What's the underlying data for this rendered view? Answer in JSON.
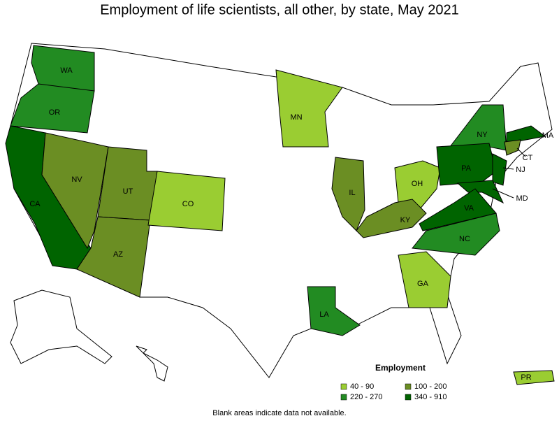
{
  "title": "Employment of life scientists, all other, by state, May 2021",
  "legend": {
    "title": "Employment",
    "items": [
      {
        "label": "40 - 90",
        "color": "#9acd32"
      },
      {
        "label": "100 - 200",
        "color": "#6b8e23"
      },
      {
        "label": "220 - 270",
        "color": "#228b22"
      },
      {
        "label": "340 - 910",
        "color": "#006400"
      }
    ]
  },
  "states": [
    {
      "label": "WA",
      "color": "#228b22"
    },
    {
      "label": "OR",
      "color": "#228b22"
    },
    {
      "label": "CA",
      "color": "#006400"
    },
    {
      "label": "NV",
      "color": "#6b8e23"
    },
    {
      "label": "UT",
      "color": "#6b8e23"
    },
    {
      "label": "AZ",
      "color": "#6b8e23"
    },
    {
      "label": "CO",
      "color": "#9acd32"
    },
    {
      "label": "MN",
      "color": "#9acd32"
    },
    {
      "label": "IL",
      "color": "#6b8e23"
    },
    {
      "label": "OH",
      "color": "#9acd32"
    },
    {
      "label": "KY",
      "color": "#6b8e23"
    },
    {
      "label": "GA",
      "color": "#9acd32"
    },
    {
      "label": "LA",
      "color": "#228b22"
    },
    {
      "label": "NY",
      "color": "#228b22"
    },
    {
      "label": "PA",
      "color": "#006400"
    },
    {
      "label": "NJ",
      "color": "#006400"
    },
    {
      "label": "MD",
      "color": "#006400"
    },
    {
      "label": "VA",
      "color": "#006400"
    },
    {
      "label": "NC",
      "color": "#228b22"
    },
    {
      "label": "MA",
      "color": "#006400"
    },
    {
      "label": "CT",
      "color": "#6b8e23"
    },
    {
      "label": "PR",
      "color": "#9acd32"
    }
  ],
  "footnote": "Blank areas indicate data not available."
}
